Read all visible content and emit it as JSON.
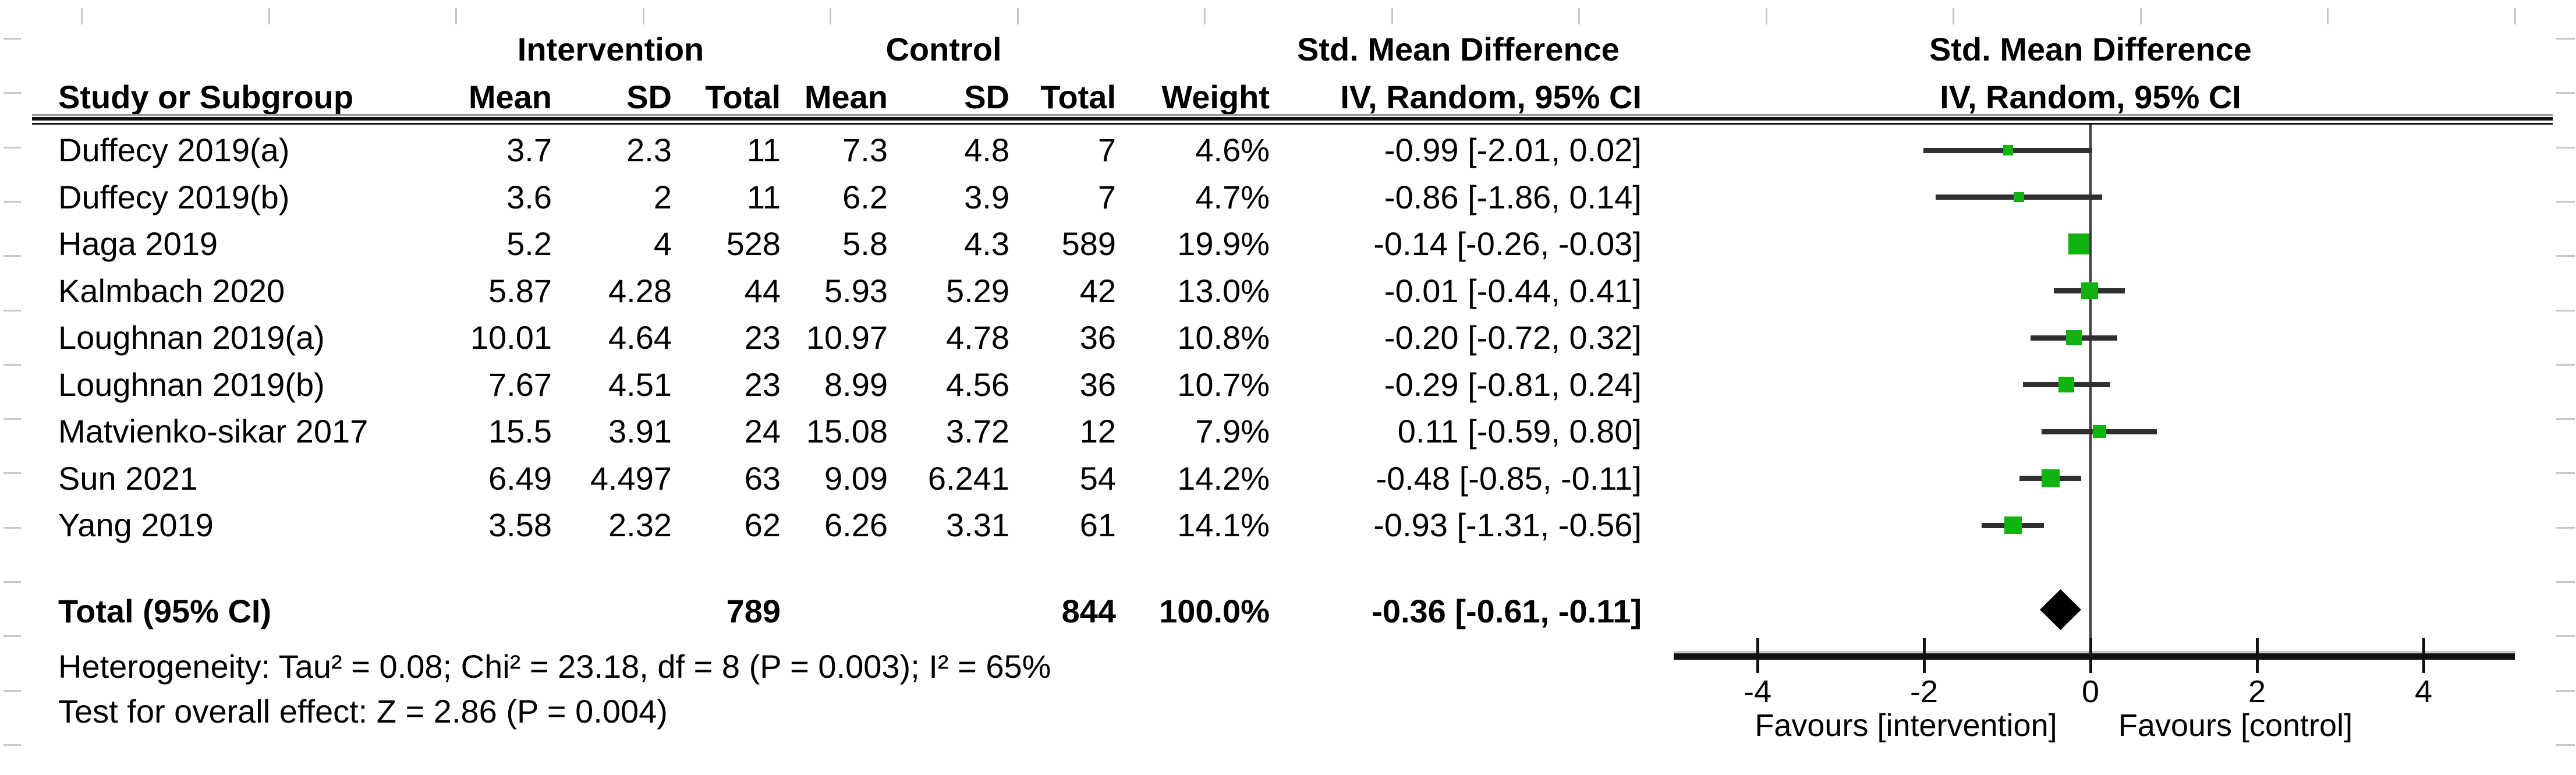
{
  "header": {
    "group1": "Intervention",
    "group2": "Control",
    "col_study": "Study or Subgroup",
    "col_mean1": "Mean",
    "col_sd1": "SD",
    "col_total1": "Total",
    "col_mean2": "Mean",
    "col_sd2": "SD",
    "col_total2": "Total",
    "col_weight": "Weight",
    "effect_line1": "Std. Mean Difference",
    "effect_line2": "IV, Random, 95% CI",
    "plot_line1": "Std. Mean Difference",
    "plot_line2": "IV, Random, 95% CI"
  },
  "rows": [
    {
      "study": "Duffecy 2019(a)",
      "i_mean": "3.7",
      "i_sd": "2.3",
      "i_total": "11",
      "c_mean": "7.3",
      "c_sd": "4.8",
      "c_total": "7",
      "weight": "4.6%",
      "ci": "-0.99 [-2.01, 0.02]"
    },
    {
      "study": "Duffecy 2019(b)",
      "i_mean": "3.6",
      "i_sd": "2",
      "i_total": "11",
      "c_mean": "6.2",
      "c_sd": "3.9",
      "c_total": "7",
      "weight": "4.7%",
      "ci": "-0.86 [-1.86, 0.14]"
    },
    {
      "study": "Haga 2019",
      "i_mean": "5.2",
      "i_sd": "4",
      "i_total": "528",
      "c_mean": "5.8",
      "c_sd": "4.3",
      "c_total": "589",
      "weight": "19.9%",
      "ci": "-0.14 [-0.26, -0.03]"
    },
    {
      "study": "Kalmbach 2020",
      "i_mean": "5.87",
      "i_sd": "4.28",
      "i_total": "44",
      "c_mean": "5.93",
      "c_sd": "5.29",
      "c_total": "42",
      "weight": "13.0%",
      "ci": "-0.01 [-0.44, 0.41]"
    },
    {
      "study": "Loughnan 2019(a)",
      "i_mean": "10.01",
      "i_sd": "4.64",
      "i_total": "23",
      "c_mean": "10.97",
      "c_sd": "4.78",
      "c_total": "36",
      "weight": "10.8%",
      "ci": "-0.20 [-0.72, 0.32]"
    },
    {
      "study": "Loughnan 2019(b)",
      "i_mean": "7.67",
      "i_sd": "4.51",
      "i_total": "23",
      "c_mean": "8.99",
      "c_sd": "4.56",
      "c_total": "36",
      "weight": "10.7%",
      "ci": "-0.29 [-0.81, 0.24]"
    },
    {
      "study": "Matvienko-sikar 2017",
      "i_mean": "15.5",
      "i_sd": "3.91",
      "i_total": "24",
      "c_mean": "15.08",
      "c_sd": "3.72",
      "c_total": "12",
      "weight": "7.9%",
      "ci": "0.11 [-0.59, 0.80]"
    },
    {
      "study": "Sun 2021",
      "i_mean": "6.49",
      "i_sd": "4.497",
      "i_total": "63",
      "c_mean": "9.09",
      "c_sd": "6.241",
      "c_total": "54",
      "weight": "14.2%",
      "ci": "-0.48 [-0.85, -0.11]"
    },
    {
      "study": "Yang 2019",
      "i_mean": "3.58",
      "i_sd": "2.32",
      "i_total": "62",
      "c_mean": "6.26",
      "c_sd": "3.31",
      "c_total": "61",
      "weight": "14.1%",
      "ci": "-0.93 [-1.31, -0.56]"
    }
  ],
  "total_row": {
    "label": "Total (95% CI)",
    "i_total": "789",
    "c_total": "844",
    "weight": "100.0%",
    "ci": "-0.36 [-0.61, -0.11]"
  },
  "footer": {
    "heterogeneity": "Heterogeneity: Tau² = 0.08; Chi² = 23.18, df = 8 (P = 0.003); I² = 65%",
    "overall_effect": "Test for overall effect: Z = 2.86 (P = 0.004)"
  },
  "axis": {
    "tick_labels": [
      "-4",
      "-2",
      "0",
      "2",
      "4"
    ],
    "favours_left": "Favours [intervention]",
    "favours_right": "Favours [control]"
  },
  "colors": {
    "square_green": "#10b410",
    "ci_line": "#2f2f2f",
    "zero_line": "#3c3c3c",
    "axis_line": "#111111",
    "separator": "#101010",
    "separator_gray": "#9b9b9b",
    "grid_stub": "#c7c7c7",
    "diamond": "#000000"
  },
  "chart_data": {
    "type": "scatter",
    "subtype": "forest-plot",
    "title": "Std. Mean Difference, IV, Random, 95% CI",
    "effect_measure": "Std. Mean Difference",
    "model": "IV, Random, 95% CI",
    "xlim": [
      -5,
      5
    ],
    "x_ticks": [
      -4,
      -2,
      0,
      2,
      4
    ],
    "favours_left": "Favours [intervention]",
    "favours_right": "Favours [control]",
    "studies": [
      {
        "name": "Duffecy 2019(a)",
        "estimate": -0.99,
        "ci_lower": -2.01,
        "ci_upper": 0.02,
        "weight_pct": 4.6
      },
      {
        "name": "Duffecy 2019(b)",
        "estimate": -0.86,
        "ci_lower": -1.86,
        "ci_upper": 0.14,
        "weight_pct": 4.7
      },
      {
        "name": "Haga 2019",
        "estimate": -0.14,
        "ci_lower": -0.26,
        "ci_upper": -0.03,
        "weight_pct": 19.9
      },
      {
        "name": "Kalmbach 2020",
        "estimate": -0.01,
        "ci_lower": -0.44,
        "ci_upper": 0.41,
        "weight_pct": 13.0
      },
      {
        "name": "Loughnan 2019(a)",
        "estimate": -0.2,
        "ci_lower": -0.72,
        "ci_upper": 0.32,
        "weight_pct": 10.8
      },
      {
        "name": "Loughnan 2019(b)",
        "estimate": -0.29,
        "ci_lower": -0.81,
        "ci_upper": 0.24,
        "weight_pct": 10.7
      },
      {
        "name": "Matvienko-sikar 2017",
        "estimate": 0.11,
        "ci_lower": -0.59,
        "ci_upper": 0.8,
        "weight_pct": 7.9
      },
      {
        "name": "Sun 2021",
        "estimate": -0.48,
        "ci_lower": -0.85,
        "ci_upper": -0.11,
        "weight_pct": 14.2
      },
      {
        "name": "Yang 2019",
        "estimate": -0.93,
        "ci_lower": -1.31,
        "ci_upper": -0.56,
        "weight_pct": 14.1
      }
    ],
    "total": {
      "name": "Total (95% CI)",
      "estimate": -0.36,
      "ci_lower": -0.61,
      "ci_upper": -0.11,
      "weight_pct": 100.0,
      "intervention_total": 789,
      "control_total": 844
    },
    "heterogeneity": {
      "tau2": 0.08,
      "chi2": 23.18,
      "df": 8,
      "p": 0.003,
      "i2_pct": 65
    },
    "overall_effect": {
      "z": 2.86,
      "p": 0.004
    }
  }
}
